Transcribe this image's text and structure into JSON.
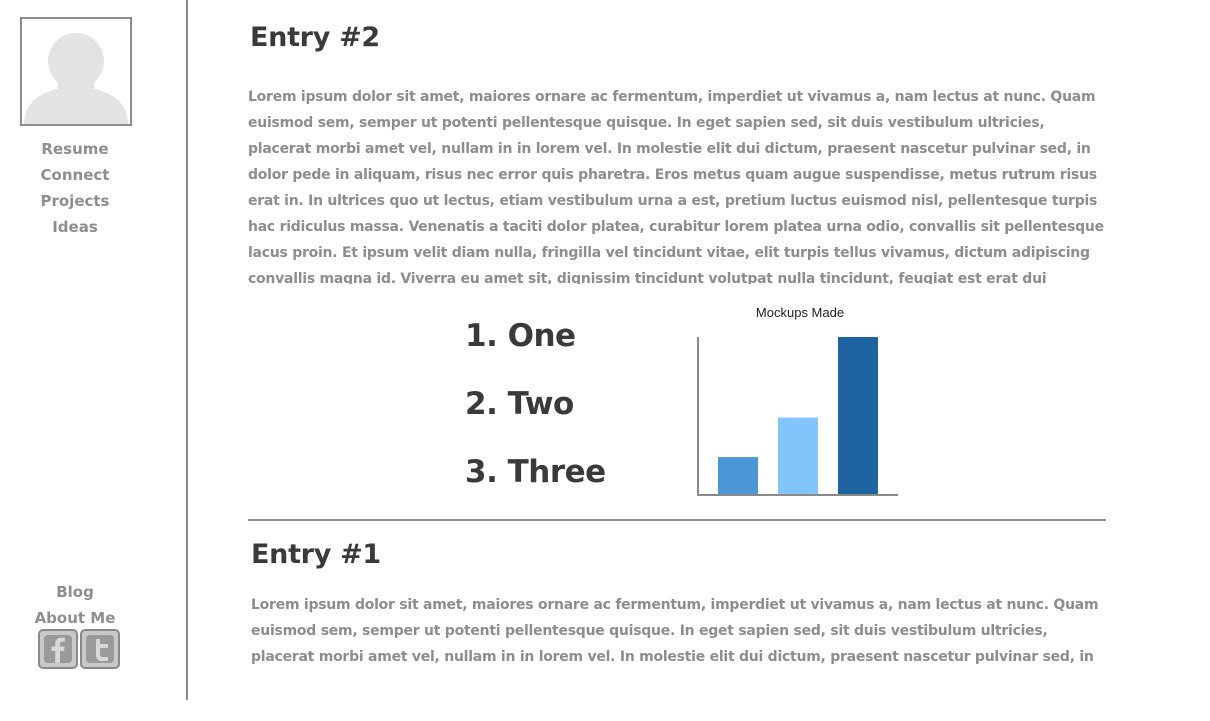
{
  "sidebar": {
    "nav": [
      "Resume",
      "Connect",
      "Projects",
      "Ideas"
    ],
    "bottom_nav": [
      "Blog",
      "About Me"
    ],
    "social": [
      {
        "label": "f",
        "icon": "facebook-icon"
      },
      {
        "label": "t",
        "icon": "twitter-icon"
      }
    ]
  },
  "entries": [
    {
      "title": "Entry #2",
      "body": "Lorem ipsum dolor sit amet, maiores ornare ac fermentum, imperdiet ut vivamus a, nam lectus at nunc. Quam euismod sem, semper ut potenti pellentesque quisque. In eget sapien sed, sit duis vestibulum ultricies, placerat morbi amet vel, nullam in in lorem vel. In molestie elit dui dictum, praesent nascetur pulvinar sed, in dolor pede in aliquam, risus nec error quis pharetra. Eros metus quam augue suspendisse, metus rutrum risus erat in.  In ultrices quo ut lectus, etiam vestibulum urna a est, pretium luctus euismod nisl, pellentesque turpis hac ridiculus massa. Venenatis a taciti dolor platea, curabitur lorem platea urna odio, convallis sit pellentesque lacus proin. Et ipsum velit diam nulla, fringilla vel tincidunt vitae, elit turpis tellus vivamus, dictum adipiscing convallis magna id. Viverra eu amet sit, dignissim tincidunt volutpat nulla tincidunt, feugiat est erat dui tempor, fusce tortor auctor vestibulum. Venenatis praesent risus orci, ante",
      "list": [
        "1. One",
        "2. Two",
        "3. Three"
      ]
    },
    {
      "title": "Entry #1",
      "body": "Lorem ipsum dolor sit amet, maiores ornare ac fermentum, imperdiet ut vivamus a, nam lectus at nunc. Quam euismod sem, semper ut potenti pellentesque quisque. In eget sapien sed, sit duis vestibulum ultricies, placerat morbi amet vel, nullam in in lorem vel. In molestie elit dui dictum, praesent nascetur pulvinar sed, in dolor pede in aliquam,"
    }
  ],
  "chart_data": {
    "type": "bar",
    "title": "Mockups Made",
    "categories": [
      "",
      "",
      ""
    ],
    "values": [
      24,
      49,
      100
    ],
    "colors": [
      "#4a96d6",
      "#82c4fb",
      "#1e64a1"
    ],
    "ylim": [
      0,
      100
    ],
    "xlabel": "",
    "ylabel": "",
    "grid": false
  },
  "colors": {
    "heading": "#3a3a3a",
    "body_text": "#8d8d8d",
    "divider": "#8a8a8a"
  }
}
